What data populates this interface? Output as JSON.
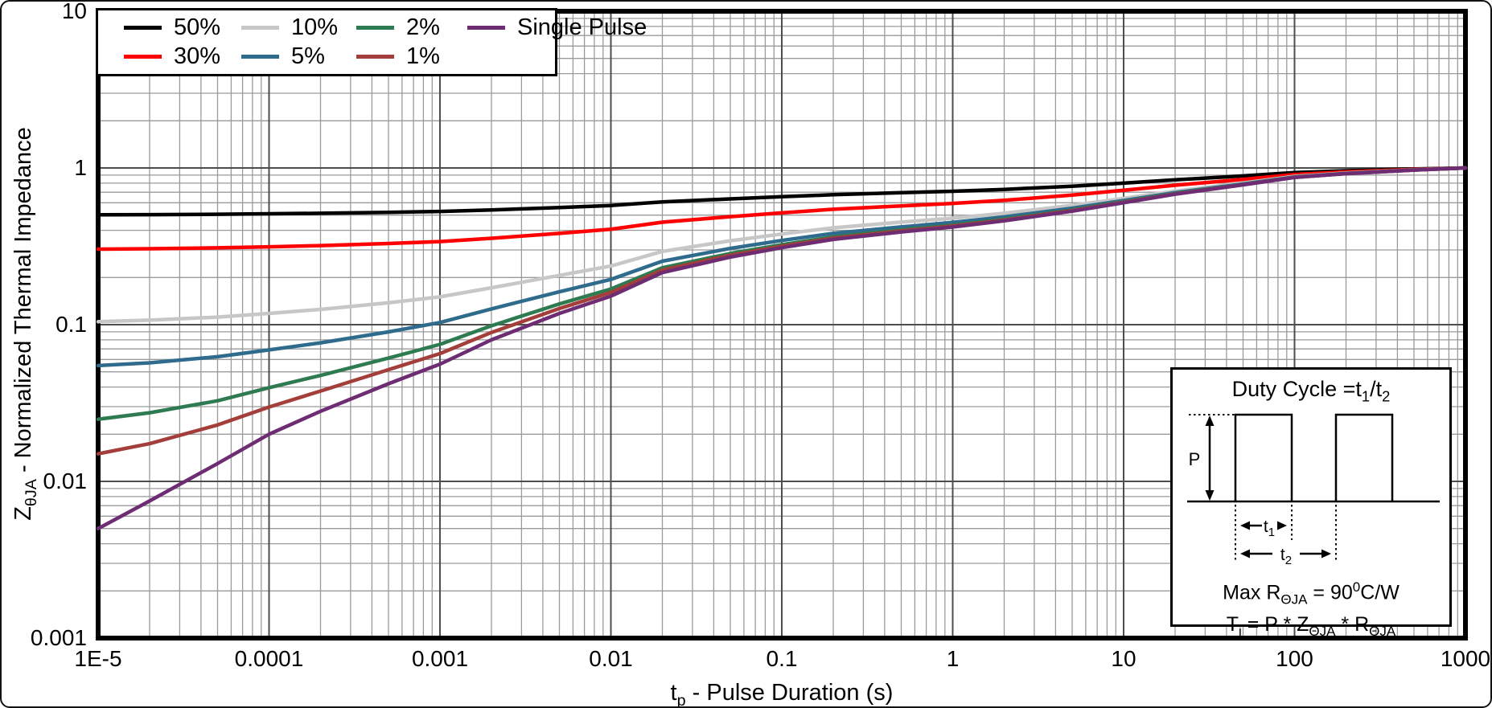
{
  "chart_data": {
    "type": "line",
    "title": "",
    "x_scale": "log",
    "y_scale": "log",
    "xlim": [
      1e-05,
      1000
    ],
    "ylim": [
      0.001,
      10
    ],
    "grid": true,
    "legend_position": "top-left",
    "xlabel": {
      "pre": "t",
      "sub": "p",
      "post": " - Pulse Duration (s)"
    },
    "ylabel": {
      "pre": "Z",
      "sub": "θJA",
      "post": " - Normalized Thermal Impedance"
    },
    "x_ticks": [
      {
        "v": 1e-05,
        "label": "1E-5"
      },
      {
        "v": 0.0001,
        "label": "0.0001"
      },
      {
        "v": 0.001,
        "label": "0.001"
      },
      {
        "v": 0.01,
        "label": "0.01"
      },
      {
        "v": 0.1,
        "label": "0.1"
      },
      {
        "v": 1,
        "label": "1"
      },
      {
        "v": 10,
        "label": "10"
      },
      {
        "v": 100,
        "label": "100"
      },
      {
        "v": 1000,
        "label": "1000"
      }
    ],
    "y_ticks": [
      {
        "v": 10,
        "label": "10"
      },
      {
        "v": 1,
        "label": "1"
      },
      {
        "v": 0.1,
        "label": "0.1"
      },
      {
        "v": 0.01,
        "label": "0.01"
      },
      {
        "v": 0.001,
        "label": "0.001"
      }
    ],
    "x": [
      1e-05,
      2e-05,
      5e-05,
      0.0001,
      0.0002,
      0.0005,
      0.001,
      0.002,
      0.005,
      0.01,
      0.02,
      0.05,
      0.1,
      0.2,
      0.5,
      1,
      2,
      5,
      10,
      20,
      50,
      100,
      200,
      500,
      1000
    ],
    "series": [
      {
        "name": "50%",
        "color": "#000000",
        "values": [
          0.5025,
          0.5038,
          0.5065,
          0.51,
          0.514,
          0.521,
          0.528,
          0.54,
          0.559,
          0.576,
          0.6075,
          0.635,
          0.655,
          0.675,
          0.695,
          0.71,
          0.73,
          0.765,
          0.8,
          0.84,
          0.89,
          0.935,
          0.96,
          0.985,
          1
        ]
      },
      {
        "name": "30%",
        "color": "#ff0000",
        "values": [
          0.3035,
          0.3053,
          0.3091,
          0.314,
          0.3196,
          0.3294,
          0.3392,
          0.356,
          0.3826,
          0.4064,
          0.4505,
          0.489,
          0.517,
          0.545,
          0.573,
          0.594,
          0.622,
          0.671,
          0.72,
          0.776,
          0.846,
          0.909,
          0.944,
          0.979,
          1
        ]
      },
      {
        "name": "10%",
        "color": "#c7c7c7",
        "values": [
          0.1045,
          0.1068,
          0.1117,
          0.118,
          0.1252,
          0.1378,
          0.1504,
          0.172,
          0.2062,
          0.2368,
          0.2935,
          0.343,
          0.379,
          0.415,
          0.451,
          0.478,
          0.514,
          0.577,
          0.64,
          0.712,
          0.802,
          0.883,
          0.928,
          0.973,
          1
        ]
      },
      {
        "name": "5%",
        "color": "#2e6b8c",
        "values": [
          0.0548,
          0.0571,
          0.0624,
          0.069,
          0.0766,
          0.0899,
          0.1032,
          0.126,
          0.1621,
          0.1944,
          0.2543,
          0.3065,
          0.3445,
          0.3825,
          0.4205,
          0.449,
          0.487,
          0.5535,
          0.62,
          0.696,
          0.791,
          0.8765,
          0.924,
          0.9715,
          1
        ]
      },
      {
        "name": "2%",
        "color": "#2e7b51",
        "values": [
          0.0249,
          0.0274,
          0.0327,
          0.0396,
          0.0474,
          0.0612,
          0.0749,
          0.0984,
          0.1356,
          0.169,
          0.2307,
          0.2846,
          0.3238,
          0.363,
          0.4022,
          0.4316,
          0.4708,
          0.5394,
          0.608,
          0.6864,
          0.7844,
          0.8726,
          0.9216,
          0.9706,
          1
        ]
      },
      {
        "name": "1%",
        "color": "#a33e3a",
        "values": [
          0.015,
          0.0174,
          0.0229,
          0.0298,
          0.0377,
          0.0516,
          0.0654,
          0.0892,
          0.1268,
          0.1605,
          0.2229,
          0.2773,
          0.3169,
          0.3565,
          0.3961,
          0.4258,
          0.4654,
          0.5347,
          0.604,
          0.6832,
          0.7822,
          0.8713,
          0.9208,
          0.9703,
          1
        ]
      },
      {
        "name": "Single Pulse",
        "color": "#6e2d73",
        "values": [
          0.005,
          0.0075,
          0.013,
          0.02,
          0.028,
          0.042,
          0.056,
          0.08,
          0.118,
          0.152,
          0.215,
          0.27,
          0.31,
          0.35,
          0.39,
          0.42,
          0.46,
          0.53,
          0.6,
          0.68,
          0.78,
          0.87,
          0.92,
          0.97,
          1
        ]
      }
    ]
  },
  "inset": {
    "title": {
      "pre": "Duty Cycle =t",
      "sub1": "1",
      "mid": "/t",
      "sub2": "2"
    },
    "p_label": "P",
    "t1": {
      "pre": "t",
      "sub": "1"
    },
    "t2": {
      "pre": "t",
      "sub": "2"
    },
    "f1": {
      "p0": "Max R",
      "sub0": "ΘJA",
      "p1": " = 90",
      "sup0": "0",
      "p2": "C/W"
    },
    "f2": {
      "p0": "T",
      "sub0": "j",
      "p1": " = P * Z",
      "sub1": "ΘJA",
      "p2": " * R",
      "sub2": "ΘJA"
    }
  }
}
